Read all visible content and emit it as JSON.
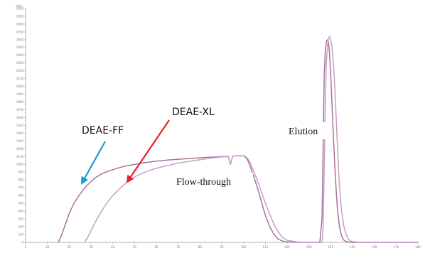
{
  "chart_data": {
    "type": "line",
    "title": "",
    "xlabel": "",
    "ylabel": "",
    "y_unit": "mAU",
    "xlim": [
      0,
      180
    ],
    "ylim": [
      0,
      3000
    ],
    "x_ticks": [
      0,
      10,
      20,
      30,
      40,
      50,
      60,
      70,
      80,
      90,
      100,
      110,
      120,
      130,
      140,
      150,
      160,
      170,
      180
    ],
    "y_ticks": [
      0,
      100,
      200,
      300,
      400,
      500,
      600,
      700,
      800,
      900,
      1000,
      1100,
      1200,
      1300,
      1400,
      1500,
      1600,
      1700,
      1800,
      1900,
      2000,
      2100,
      2200,
      2300,
      2400,
      2500,
      2600,
      2700,
      2800,
      2900,
      3000
    ],
    "grid": false,
    "legend": "none",
    "series": [
      {
        "name": "DEAE-FF",
        "color": "#a8739a",
        "x": [
          15,
          16,
          17,
          18,
          19,
          20,
          22,
          24,
          26,
          28,
          30,
          32,
          35,
          38,
          42,
          46,
          50,
          54,
          58,
          62,
          66,
          70,
          75,
          80,
          85,
          90,
          92,
          93,
          94,
          95,
          96,
          98,
          100,
          101,
          102,
          103,
          104,
          105,
          106,
          107,
          108,
          109,
          110,
          112,
          114,
          116,
          118,
          120,
          125,
          130,
          135,
          136,
          136.5,
          137,
          137.5,
          138,
          138.5,
          139,
          139.5,
          140,
          141,
          142,
          143,
          144,
          145,
          146,
          147,
          148,
          150,
          155,
          160,
          170,
          180
        ],
        "y": [
          0,
          60,
          130,
          210,
          290,
          370,
          490,
          580,
          660,
          725,
          780,
          830,
          880,
          915,
          950,
          980,
          1000,
          1020,
          1035,
          1048,
          1058,
          1066,
          1075,
          1085,
          1093,
          1100,
          1103,
          1105,
          1000,
          1105,
          1110,
          1110,
          1108,
          1090,
          1050,
          980,
          900,
          820,
          730,
          640,
          540,
          440,
          350,
          200,
          100,
          40,
          15,
          5,
          0,
          0,
          0,
          300,
          1200,
          2150,
          2450,
          2580,
          2600,
          2560,
          2400,
          2150,
          1500,
          900,
          450,
          200,
          80,
          30,
          12,
          5,
          0,
          0,
          0,
          0,
          0
        ]
      },
      {
        "name": "DEAE-XL",
        "color": "#c6a0c4",
        "x": [
          27,
          28,
          29,
          30,
          32,
          34,
          36,
          38,
          40,
          42,
          44,
          46,
          48,
          50,
          53,
          56,
          60,
          65,
          70,
          75,
          80,
          85,
          90,
          92,
          93,
          94,
          95,
          96,
          98,
          100,
          101,
          102,
          103,
          104,
          105,
          106,
          107,
          108,
          109,
          110,
          112,
          114,
          116,
          118,
          120,
          125,
          130,
          135,
          136,
          136.5,
          137,
          137.5,
          138,
          138.5,
          139,
          139.5,
          140,
          140.5,
          141,
          141.5,
          142,
          142.5,
          143,
          143.5,
          144,
          145,
          146,
          147,
          148,
          149,
          150,
          152,
          155,
          160,
          170,
          180
        ],
        "y": [
          0,
          40,
          90,
          150,
          260,
          360,
          450,
          530,
          600,
          655,
          710,
          760,
          800,
          840,
          880,
          915,
          950,
          985,
          1015,
          1040,
          1060,
          1080,
          1095,
          1100,
          1102,
          1000,
          1105,
          1110,
          1112,
          1110,
          1100,
          1070,
          1020,
          960,
          890,
          820,
          745,
          665,
          585,
          505,
          360,
          230,
          130,
          60,
          25,
          5,
          0,
          0,
          0,
          200,
          900,
          1800,
          2300,
          2520,
          2620,
          2640,
          2600,
          2520,
          2380,
          2180,
          1900,
          1600,
          1280,
          980,
          720,
          400,
          210,
          100,
          45,
          20,
          10,
          4,
          0,
          0,
          0,
          0
        ]
      }
    ],
    "annotations": [
      {
        "text": "DEAE-FF",
        "arrow_color": "#1a9ad8",
        "target_x": 25,
        "target_y": 650
      },
      {
        "text": "DEAE-XL",
        "arrow_color": "#e8202a",
        "target_x": 46,
        "target_y": 760
      },
      {
        "text": "Flow-through"
      },
      {
        "text": "Elution"
      }
    ]
  }
}
